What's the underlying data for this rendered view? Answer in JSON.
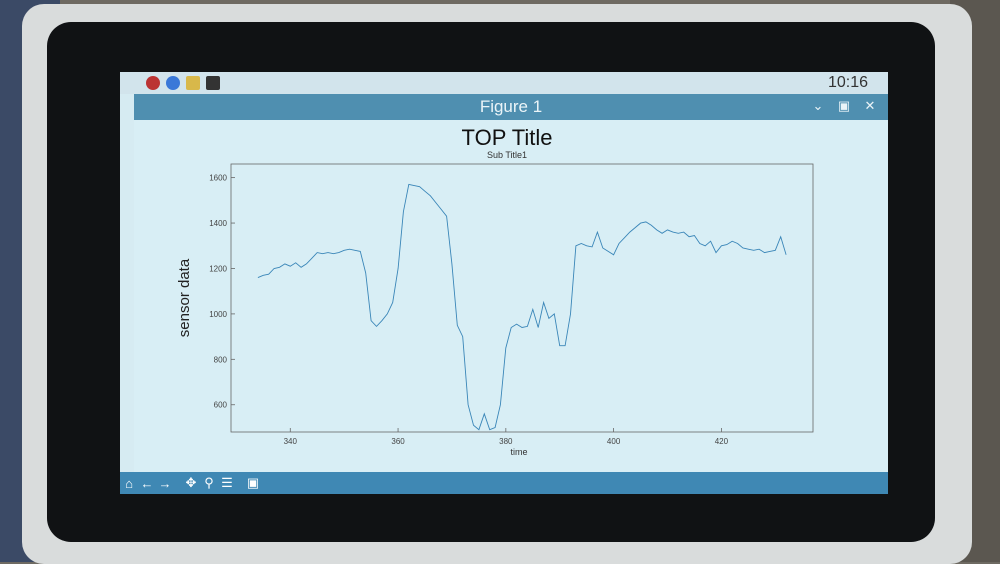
{
  "window": {
    "title": "Figure 1",
    "clock": "10:16"
  },
  "chart_data": {
    "type": "line",
    "title": "TOP Title",
    "subtitle": "Sub Title1",
    "xlabel": "time",
    "ylabel": "sensor data",
    "xlim": [
      329,
      437
    ],
    "ylim": [
      480,
      1660
    ],
    "xticks": [
      340,
      360,
      380,
      400,
      420
    ],
    "yticks": [
      600,
      800,
      1000,
      1200,
      1400,
      1600
    ],
    "grid": false,
    "color": "#3a86b8",
    "series": [
      {
        "x": [
          334,
          335,
          336,
          337,
          338,
          339,
          340,
          341,
          342,
          343,
          344,
          345,
          346,
          347,
          348,
          349,
          350,
          351,
          352,
          353,
          354,
          355,
          356,
          357,
          358,
          359,
          360,
          361,
          362,
          363,
          364,
          365,
          366,
          367,
          368,
          369,
          370,
          371,
          372,
          373,
          374,
          375,
          376,
          377,
          378,
          379,
          380,
          381,
          382,
          383,
          384,
          385,
          386,
          387,
          388,
          389,
          390,
          391,
          392,
          393,
          394,
          395,
          396,
          397,
          398,
          399,
          400,
          401,
          402,
          403,
          404,
          405,
          406,
          407,
          408,
          409,
          410,
          411,
          412,
          413,
          414,
          415,
          416,
          417,
          418,
          419,
          420,
          421,
          422,
          423,
          424,
          425,
          426,
          427,
          428,
          429,
          430,
          431,
          432
        ],
        "y": [
          1160,
          1170,
          1175,
          1200,
          1205,
          1220,
          1210,
          1225,
          1205,
          1220,
          1245,
          1270,
          1265,
          1270,
          1265,
          1270,
          1280,
          1285,
          1280,
          1275,
          1180,
          970,
          945,
          970,
          1000,
          1050,
          1200,
          1450,
          1570,
          1565,
          1560,
          1540,
          1520,
          1490,
          1460,
          1430,
          1220,
          950,
          900,
          600,
          510,
          490,
          560,
          490,
          500,
          600,
          850,
          940,
          955,
          940,
          945,
          1020,
          940,
          1050,
          980,
          1000,
          860,
          860,
          1000,
          1300,
          1310,
          1300,
          1295,
          1360,
          1290,
          1275,
          1260,
          1310,
          1335,
          1360,
          1380,
          1400,
          1405,
          1390,
          1370,
          1355,
          1370,
          1360,
          1355,
          1360,
          1340,
          1345,
          1310,
          1300,
          1320,
          1270,
          1300,
          1305,
          1320,
          1310,
          1290,
          1285,
          1280,
          1285,
          1270,
          1275,
          1280,
          1340,
          1260
        ]
      }
    ]
  },
  "toolbar": {
    "home": "home-icon",
    "back": "back-arrow-icon",
    "forward": "forward-arrow-icon",
    "pan": "pan-icon",
    "zoom": "zoom-icon",
    "configure": "configure-icon",
    "save": "save-icon"
  }
}
